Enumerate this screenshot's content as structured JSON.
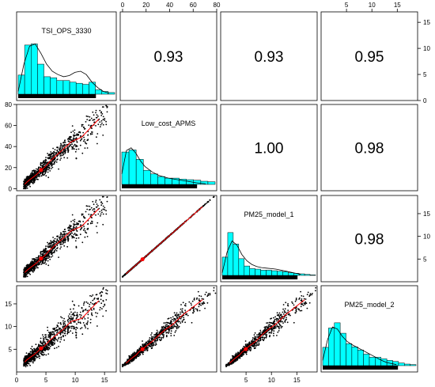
{
  "chart_data": {
    "type": "scatter-matrix",
    "variables": [
      "TSI_OPS_3330",
      "Low_cost_APMS",
      "PM25_model_1",
      "PM25_model_2"
    ],
    "correlations": [
      {
        "row": 0,
        "col": 1,
        "label": "0.93"
      },
      {
        "row": 0,
        "col": 2,
        "label": "0.93"
      },
      {
        "row": 0,
        "col": 3,
        "label": "0.95"
      },
      {
        "row": 1,
        "col": 2,
        "label": "1.00"
      },
      {
        "row": 1,
        "col": 3,
        "label": "0.98"
      },
      {
        "row": 2,
        "col": 3,
        "label": "0.98"
      }
    ],
    "axes": {
      "TSI": {
        "range": [
          0,
          17
        ],
        "ticks": [
          0,
          5,
          10,
          15
        ],
        "labels": [
          "0",
          "5",
          "10",
          "15"
        ]
      },
      "APMS": {
        "range": [
          -2,
          80
        ],
        "ticks": [
          0,
          20,
          40,
          60,
          80
        ],
        "labels": [
          "0",
          "20",
          "40",
          "60",
          "80"
        ]
      },
      "M1": {
        "range": [
          0,
          19
        ],
        "ticks": [
          5,
          10,
          15
        ],
        "labels": [
          "5",
          "10",
          "15"
        ]
      },
      "M2": {
        "range": [
          0,
          19
        ],
        "ticks": [
          5,
          10,
          15
        ],
        "labels": [
          "5",
          "10",
          "15"
        ]
      }
    },
    "histograms": [
      {
        "variable": "TSI_OPS_3330",
        "range": [
          0,
          17
        ],
        "bars": [
          0.35,
          0.9,
          0.92,
          0.55,
          0.32,
          0.3,
          0.25,
          0.25,
          0.22,
          0.2,
          0.18,
          0.22,
          0.08,
          0.05,
          0.03
        ],
        "density": [
          [
            0,
            0.05
          ],
          [
            1,
            0.55
          ],
          [
            2,
            0.88
          ],
          [
            3,
            0.92
          ],
          [
            4,
            0.75
          ],
          [
            5,
            0.55
          ],
          [
            6,
            0.42
          ],
          [
            7,
            0.36
          ],
          [
            8,
            0.32
          ],
          [
            9,
            0.34
          ],
          [
            10,
            0.4
          ],
          [
            11,
            0.42
          ],
          [
            12,
            0.36
          ],
          [
            13,
            0.22
          ],
          [
            14,
            0.12
          ],
          [
            15,
            0.05
          ],
          [
            16,
            0.02
          ]
        ]
      },
      {
        "variable": "Low_cost_APMS",
        "range": [
          0,
          80
        ],
        "bars": [
          0.62,
          0.66,
          0.48,
          0.27,
          0.2,
          0.15,
          0.12,
          0.12,
          0.1,
          0.09,
          0.08,
          0.06,
          0.05
        ],
        "density": [
          [
            0,
            0.2
          ],
          [
            4,
            0.65
          ],
          [
            8,
            0.7
          ],
          [
            12,
            0.6
          ],
          [
            16,
            0.45
          ],
          [
            20,
            0.34
          ],
          [
            26,
            0.24
          ],
          [
            32,
            0.17
          ],
          [
            40,
            0.12
          ],
          [
            48,
            0.09
          ],
          [
            56,
            0.06
          ],
          [
            64,
            0.03
          ],
          [
            72,
            0.01
          ]
        ]
      },
      {
        "variable": "PM25_model_1",
        "range": [
          0,
          19
        ],
        "bars": [
          0.35,
          0.82,
          0.6,
          0.32,
          0.18,
          0.13,
          0.12,
          0.1,
          0.1,
          0.09,
          0.08,
          0.07,
          0.05,
          0.04,
          0.03,
          0.02,
          0.01
        ],
        "density": [
          [
            0,
            0.05
          ],
          [
            1,
            0.45
          ],
          [
            2,
            0.66
          ],
          [
            3,
            0.58
          ],
          [
            4,
            0.4
          ],
          [
            5,
            0.28
          ],
          [
            6,
            0.21
          ],
          [
            7,
            0.17
          ],
          [
            8,
            0.15
          ],
          [
            9,
            0.14
          ],
          [
            10,
            0.13
          ],
          [
            11,
            0.12
          ],
          [
            12,
            0.1
          ],
          [
            13,
            0.08
          ],
          [
            14,
            0.06
          ],
          [
            15,
            0.04
          ],
          [
            16,
            0.02
          ]
        ]
      },
      {
        "variable": "PM25_model_2",
        "range": [
          0,
          19
        ],
        "bars": [
          0.35,
          0.72,
          0.82,
          0.62,
          0.42,
          0.36,
          0.3,
          0.22,
          0.16,
          0.16,
          0.13,
          0.1,
          0.08,
          0.05,
          0.03,
          0.02
        ],
        "density": [
          [
            0,
            0.1
          ],
          [
            1,
            0.5
          ],
          [
            2,
            0.74
          ],
          [
            3,
            0.7
          ],
          [
            4,
            0.56
          ],
          [
            5,
            0.46
          ],
          [
            6,
            0.4
          ],
          [
            7,
            0.35
          ],
          [
            8,
            0.3
          ],
          [
            9,
            0.25
          ],
          [
            10,
            0.2
          ],
          [
            11,
            0.15
          ],
          [
            12,
            0.1
          ],
          [
            13,
            0.06
          ],
          [
            14,
            0.04
          ],
          [
            15,
            0.02
          ]
        ]
      }
    ],
    "scatter_colors": {
      "points": "#000000",
      "fit_line": "#ff0000",
      "highlight": "#ff0000",
      "hist_fill": "#00ffff"
    }
  }
}
